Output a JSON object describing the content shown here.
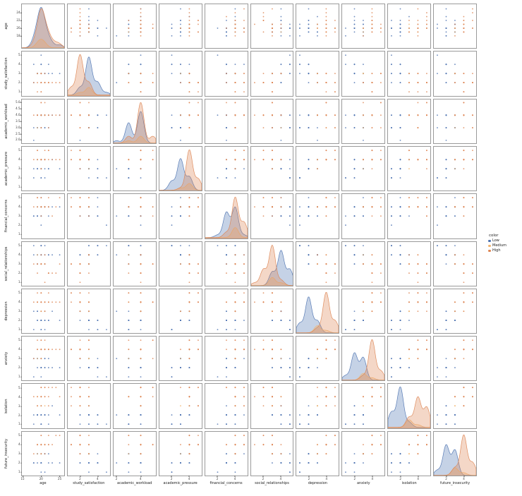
{
  "figure": {
    "legend": {
      "title": "color",
      "entries": [
        {
          "label": "Low",
          "color": "#4c72b0"
        },
        {
          "label": "Medium",
          "color": "#f2b56f"
        },
        {
          "label": "High",
          "color": "#dd8452"
        }
      ]
    }
  },
  "chart_data": {
    "type": "scatter",
    "subtype": "pairplot-matrix",
    "grid": "10x10",
    "diagonal": "kde",
    "hue_title": "color",
    "hue_classes": [
      "Low",
      "Medium",
      "High"
    ],
    "variables": [
      {
        "name": "age",
        "range": [
          14.8,
          26.2
        ],
        "xtick_vals": [
          15,
          20,
          25
        ],
        "xticks": [
          "15",
          "20",
          "25"
        ],
        "ytick_vals": [
          18,
          20,
          22,
          24
        ],
        "yticks": [
          "18",
          "20",
          "22",
          "24"
        ]
      },
      {
        "name": "study_satisfaction",
        "range": [
          0.6,
          5.4
        ],
        "xtick_vals": [
          2,
          4
        ],
        "xticks": [
          "2",
          "4"
        ],
        "ytick_vals": [
          1,
          2,
          3,
          4,
          5
        ],
        "yticks": [
          "1",
          "2",
          "3",
          "4",
          "5"
        ]
      },
      {
        "name": "academic_workload",
        "range": [
          1.75,
          5.25
        ],
        "xtick_vals": [
          2,
          4
        ],
        "xticks": [
          "2",
          "4"
        ],
        "ytick_vals": [
          2,
          2.5,
          3,
          3.5,
          4,
          4.5,
          5
        ],
        "yticks": [
          "2.0",
          "2.5",
          "3.0",
          "3.5",
          "4.0",
          "4.5",
          "5.0"
        ]
      },
      {
        "name": "academic_pressure",
        "range": [
          0.6,
          5.4
        ],
        "xtick_vals": [
          2,
          4
        ],
        "xticks": [
          "2",
          "4"
        ],
        "ytick_vals": [
          1,
          2,
          3,
          4,
          5
        ],
        "yticks": [
          "1",
          "2",
          "3",
          "4",
          "5"
        ]
      },
      {
        "name": "financial_concerns",
        "range": [
          0.6,
          5.4
        ],
        "xtick_vals": [
          2,
          4
        ],
        "xticks": [
          "2",
          "4"
        ],
        "ytick_vals": [
          1,
          2,
          3,
          4,
          5
        ],
        "yticks": [
          "1",
          "2",
          "3",
          "4",
          "5"
        ]
      },
      {
        "name": "social_relationships",
        "range": [
          0.6,
          5.4
        ],
        "xtick_vals": [
          2,
          4
        ],
        "xticks": [
          "2",
          "4"
        ],
        "ytick_vals": [
          1,
          2,
          3,
          4,
          5
        ],
        "yticks": [
          "1",
          "2",
          "3",
          "4",
          "5"
        ]
      },
      {
        "name": "depression",
        "range": [
          0.6,
          5.4
        ],
        "xtick_vals": [
          2,
          4
        ],
        "xticks": [
          "2",
          "4"
        ],
        "ytick_vals": [
          1,
          2,
          3,
          4,
          5
        ],
        "yticks": [
          "1",
          "2",
          "3",
          "4",
          "5"
        ]
      },
      {
        "name": "anxiety",
        "range": [
          0.6,
          5.4
        ],
        "xtick_vals": [
          2,
          4
        ],
        "xticks": [
          "2",
          "4"
        ],
        "ytick_vals": [
          1,
          2,
          3,
          4,
          5
        ],
        "yticks": [
          "1",
          "2",
          "3",
          "4",
          "5"
        ]
      },
      {
        "name": "isolation",
        "range": [
          0.6,
          5.4
        ],
        "xtick_vals": [
          2,
          4
        ],
        "xticks": [
          "2",
          "4"
        ],
        "ytick_vals": [
          1,
          2,
          3,
          4,
          5
        ],
        "yticks": [
          "1",
          "2",
          "3",
          "4",
          "5"
        ]
      },
      {
        "name": "future_insecurity",
        "range": [
          0.6,
          5.4
        ],
        "xtick_vals": [
          2,
          4
        ],
        "xticks": [
          "2",
          "4"
        ],
        "ytick_vals": [
          1,
          2,
          3,
          4,
          5
        ],
        "yticks": [
          "1",
          "2",
          "3",
          "4",
          "5"
        ]
      }
    ],
    "record_fields": [
      "age",
      "study_satisfaction",
      "academic_workload",
      "academic_pressure",
      "financial_concerns",
      "social_relationships",
      "depression",
      "anxiety",
      "isolation",
      "future_insecurity",
      "color"
    ],
    "records": [
      [
        19,
        3,
        3,
        3,
        3,
        4,
        2,
        2,
        2,
        2,
        "Low"
      ],
      [
        20,
        3,
        4,
        3,
        4,
        4,
        2,
        3,
        2,
        3,
        "Low"
      ],
      [
        20,
        4,
        3,
        2,
        3,
        5,
        1,
        2,
        1,
        2,
        "Low"
      ],
      [
        21,
        3,
        4,
        4,
        4,
        3,
        2,
        2,
        2,
        3,
        "Low"
      ],
      [
        18,
        2,
        2,
        3,
        3,
        4,
        3,
        3,
        2,
        2,
        "Low"
      ],
      [
        20,
        3,
        3,
        3,
        4,
        5,
        2,
        3,
        1,
        3,
        "Low"
      ],
      [
        22,
        4,
        4,
        3,
        3,
        4,
        2,
        2,
        2,
        2,
        "Low"
      ],
      [
        19,
        3,
        4,
        4,
        4,
        3,
        3,
        3,
        2,
        3,
        "Low"
      ],
      [
        20,
        2,
        4,
        3,
        3,
        4,
        2,
        2,
        1,
        2,
        "Low"
      ],
      [
        21,
        3,
        3,
        2,
        4,
        5,
        1,
        2,
        2,
        1,
        "Low"
      ],
      [
        20,
        4,
        4,
        3,
        5,
        4,
        2,
        3,
        2,
        3,
        "Low"
      ],
      [
        23,
        3,
        4,
        4,
        4,
        4,
        3,
        2,
        3,
        2,
        "Low"
      ],
      [
        19,
        3,
        3,
        3,
        3,
        3,
        2,
        3,
        2,
        3,
        "Low"
      ],
      [
        20,
        3,
        4,
        3,
        4,
        4,
        2,
        2,
        2,
        2,
        "Low"
      ],
      [
        18,
        4,
        3,
        2,
        3,
        5,
        1,
        1,
        1,
        2,
        "Low"
      ],
      [
        21,
        2,
        4,
        4,
        4,
        4,
        3,
        3,
        2,
        3,
        "Low"
      ],
      [
        20,
        3,
        4,
        3,
        3,
        3,
        2,
        2,
        2,
        2,
        "Low"
      ],
      [
        22,
        3,
        3,
        3,
        4,
        4,
        2,
        3,
        1,
        3,
        "Low"
      ],
      [
        20,
        4,
        4,
        4,
        4,
        5,
        2,
        2,
        2,
        2,
        "Low"
      ],
      [
        19,
        3,
        3,
        3,
        3,
        4,
        3,
        3,
        2,
        3,
        "Low"
      ],
      [
        25,
        3,
        4,
        3,
        4,
        4,
        2,
        2,
        2,
        2,
        "Low"
      ],
      [
        20,
        5,
        4,
        2,
        2,
        5,
        1,
        1,
        1,
        1,
        "Low"
      ],
      [
        21,
        3,
        3,
        3,
        4,
        3,
        2,
        3,
        2,
        3,
        "Low"
      ],
      [
        20,
        3,
        4,
        4,
        3,
        4,
        2,
        2,
        3,
        2,
        "Low"
      ],
      [
        20,
        3,
        4,
        3,
        4,
        3,
        3,
        3,
        3,
        3,
        "Medium"
      ],
      [
        21,
        2,
        4,
        4,
        4,
        3,
        3,
        4,
        3,
        4,
        "Medium"
      ],
      [
        19,
        3,
        3,
        4,
        4,
        4,
        4,
        3,
        4,
        3,
        "Medium"
      ],
      [
        20,
        3,
        4,
        4,
        4,
        3,
        3,
        3,
        3,
        3,
        "Medium"
      ],
      [
        20,
        2,
        4,
        4,
        4,
        3,
        4,
        4,
        4,
        4,
        "High"
      ],
      [
        21,
        2,
        4,
        4,
        4,
        3,
        4,
        4,
        5,
        4,
        "High"
      ],
      [
        19,
        3,
        4,
        4,
        5,
        2,
        4,
        5,
        4,
        4,
        "High"
      ],
      [
        20,
        2,
        3,
        4,
        4,
        3,
        5,
        4,
        4,
        5,
        "High"
      ],
      [
        22,
        2,
        4,
        5,
        4,
        2,
        4,
        4,
        3,
        4,
        "High"
      ],
      [
        20,
        1,
        4,
        4,
        5,
        3,
        4,
        4,
        5,
        4,
        "High"
      ],
      [
        21,
        3,
        4,
        4,
        4,
        4,
        3,
        4,
        4,
        3,
        "High"
      ],
      [
        20,
        2,
        5,
        4,
        4,
        3,
        4,
        3,
        4,
        4,
        "High"
      ],
      [
        23,
        2,
        4,
        4,
        3,
        2,
        4,
        4,
        5,
        4,
        "High"
      ],
      [
        20,
        3,
        3,
        4,
        4,
        3,
        5,
        5,
        4,
        5,
        "High"
      ],
      [
        19,
        2,
        4,
        5,
        5,
        3,
        4,
        4,
        3,
        4,
        "High"
      ],
      [
        24,
        2,
        4,
        4,
        4,
        2,
        4,
        4,
        5,
        5,
        "High"
      ],
      [
        20,
        1,
        4,
        4,
        4,
        3,
        5,
        4,
        4,
        4,
        "High"
      ],
      [
        21,
        2,
        5,
        5,
        4,
        3,
        4,
        5,
        5,
        4,
        "High"
      ],
      [
        20,
        3,
        4,
        4,
        5,
        4,
        4,
        4,
        3,
        4,
        "High"
      ],
      [
        18,
        2,
        4,
        4,
        4,
        3,
        4,
        3,
        4,
        3,
        "High"
      ],
      [
        22,
        2,
        3,
        4,
        4,
        2,
        4,
        4,
        4,
        4,
        "High"
      ],
      [
        20,
        2,
        4,
        3,
        4,
        3,
        3,
        4,
        5,
        4,
        "High"
      ],
      [
        25,
        2,
        4,
        4,
        5,
        3,
        4,
        4,
        4,
        5,
        "High"
      ],
      [
        19,
        1,
        4,
        5,
        4,
        3,
        5,
        4,
        3,
        4,
        "High"
      ],
      [
        21,
        2,
        4,
        4,
        4,
        1,
        4,
        4,
        4,
        4,
        "High"
      ],
      [
        20,
        3,
        5,
        4,
        3,
        3,
        4,
        5,
        5,
        4,
        "High"
      ],
      [
        20,
        2,
        4,
        4,
        4,
        3,
        4,
        4,
        4,
        3,
        "High"
      ],
      [
        22,
        2,
        4,
        5,
        5,
        2,
        5,
        4,
        5,
        5,
        "High"
      ]
    ]
  }
}
